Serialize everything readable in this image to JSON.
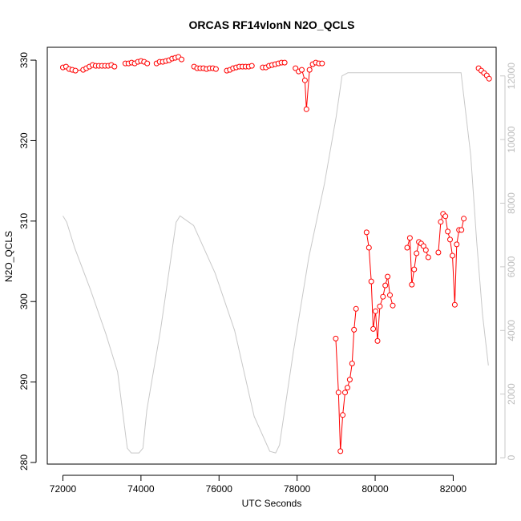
{
  "chart_data": {
    "type": "line",
    "title": "ORCAS RF14vlonN N2O_QCLS",
    "xlabel": "UTC Seconds",
    "ylabel": "N2O_QCLS",
    "xlim": [
      71600,
      83100
    ],
    "ylim": [
      279.8,
      331.6
    ],
    "y2lim": [
      -200,
      12900
    ],
    "x_ticks": [
      72000,
      74000,
      76000,
      78000,
      80000,
      82000
    ],
    "y_ticks": [
      280,
      290,
      300,
      310,
      320,
      330
    ],
    "y2_ticks": [
      0,
      2000,
      4000,
      6000,
      8000,
      10000,
      12000
    ],
    "colors": {
      "n2o": "#ff0000",
      "altitude": "#c8c8c8",
      "frame": "#000000"
    },
    "series": [
      {
        "values": [
          [
            72000,
            329.1
          ],
          [
            72080,
            329.2
          ],
          [
            72160,
            328.9
          ],
          [
            72240,
            328.8
          ],
          [
            72320,
            328.7
          ],
          [
            72520,
            328.8
          ],
          [
            72600,
            329.0
          ],
          [
            72680,
            329.2
          ],
          [
            72760,
            329.4
          ],
          [
            72840,
            329.3
          ],
          [
            72920,
            329.3
          ],
          [
            73000,
            329.3
          ],
          [
            73080,
            329.3
          ],
          [
            73160,
            329.3
          ],
          [
            73240,
            329.4
          ],
          [
            73320,
            329.2
          ],
          [
            73600,
            329.6
          ],
          [
            73680,
            329.6
          ],
          [
            73760,
            329.7
          ],
          [
            73840,
            329.6
          ],
          [
            73920,
            329.8
          ],
          [
            74000,
            329.9
          ],
          [
            74080,
            329.8
          ],
          [
            74160,
            329.6
          ],
          [
            74400,
            329.6
          ],
          [
            74480,
            329.8
          ],
          [
            74560,
            329.8
          ],
          [
            74640,
            329.9
          ],
          [
            74720,
            330.0
          ],
          [
            74800,
            330.2
          ],
          [
            74880,
            330.3
          ],
          [
            74960,
            330.4
          ],
          [
            75040,
            330.1
          ],
          [
            75360,
            329.2
          ],
          [
            75440,
            329.0
          ],
          [
            75520,
            329.0
          ],
          [
            75600,
            329.0
          ],
          [
            75680,
            328.9
          ],
          [
            75760,
            329.0
          ],
          [
            75840,
            329.0
          ],
          [
            75920,
            328.9
          ],
          [
            76200,
            328.7
          ],
          [
            76280,
            328.8
          ],
          [
            76360,
            329.0
          ],
          [
            76440,
            329.1
          ],
          [
            76520,
            329.2
          ],
          [
            76600,
            329.2
          ],
          [
            76680,
            329.2
          ],
          [
            76760,
            329.2
          ],
          [
            76840,
            329.3
          ],
          [
            77120,
            329.1
          ],
          [
            77200,
            329.1
          ],
          [
            77280,
            329.3
          ],
          [
            77360,
            329.4
          ],
          [
            77440,
            329.5
          ],
          [
            77520,
            329.6
          ],
          [
            77600,
            329.7
          ],
          [
            77680,
            329.7
          ],
          [
            77960,
            329.0
          ],
          [
            78040,
            328.6
          ],
          [
            78120,
            328.8
          ],
          [
            78200,
            327.5
          ],
          [
            78240,
            323.9
          ],
          [
            78320,
            328.8
          ],
          [
            78400,
            329.5
          ],
          [
            78480,
            329.7
          ],
          [
            78560,
            329.6
          ],
          [
            78640,
            329.6
          ],
          [
            78990,
            295.4
          ],
          [
            79060,
            288.7
          ],
          [
            79110,
            281.4
          ],
          [
            79170,
            285.9
          ],
          [
            79230,
            288.7
          ],
          [
            79290,
            289.3
          ],
          [
            79350,
            290.3
          ],
          [
            79410,
            292.3
          ],
          [
            79460,
            296.5
          ],
          [
            79510,
            299.1
          ],
          [
            79780,
            308.6
          ],
          [
            79840,
            306.7
          ],
          [
            79900,
            302.5
          ],
          [
            79950,
            296.6
          ],
          [
            80010,
            298.8
          ],
          [
            80060,
            295.1
          ],
          [
            80120,
            299.4
          ],
          [
            80200,
            300.6
          ],
          [
            80260,
            302.0
          ],
          [
            80320,
            303.1
          ],
          [
            80380,
            300.8
          ],
          [
            80450,
            299.5
          ],
          [
            80820,
            306.7
          ],
          [
            80890,
            307.9
          ],
          [
            80940,
            302.1
          ],
          [
            81000,
            304.0
          ],
          [
            81060,
            306.0
          ],
          [
            81120,
            307.4
          ],
          [
            81180,
            307.2
          ],
          [
            81240,
            306.9
          ],
          [
            81300,
            306.4
          ],
          [
            81360,
            305.5
          ],
          [
            81620,
            306.1
          ],
          [
            81680,
            309.9
          ],
          [
            81740,
            310.9
          ],
          [
            81800,
            310.6
          ],
          [
            81860,
            308.7
          ],
          [
            81920,
            307.7
          ],
          [
            81980,
            305.7
          ],
          [
            82040,
            299.6
          ],
          [
            82090,
            307.1
          ],
          [
            82150,
            308.9
          ],
          [
            82210,
            308.9
          ],
          [
            82270,
            310.3
          ],
          [
            82650,
            329.0
          ],
          [
            82720,
            328.7
          ],
          [
            82790,
            328.4
          ],
          [
            82860,
            328.1
          ],
          [
            82920,
            327.7
          ]
        ]
      },
      {
        "axis": "right",
        "values": [
          [
            72000,
            7600
          ],
          [
            72100,
            7400
          ],
          [
            72300,
            6600
          ],
          [
            72700,
            5300
          ],
          [
            73100,
            3900
          ],
          [
            73400,
            2700
          ],
          [
            73650,
            300
          ],
          [
            73750,
            150
          ],
          [
            73950,
            150
          ],
          [
            74050,
            300
          ],
          [
            74150,
            1500
          ],
          [
            74500,
            4000
          ],
          [
            74900,
            7400
          ],
          [
            75000,
            7600
          ],
          [
            75350,
            7300
          ],
          [
            75900,
            5800
          ],
          [
            76400,
            4000
          ],
          [
            76900,
            1300
          ],
          [
            77300,
            200
          ],
          [
            77450,
            150
          ],
          [
            77550,
            400
          ],
          [
            77900,
            3300
          ],
          [
            78300,
            6300
          ],
          [
            78700,
            8600
          ],
          [
            79000,
            10700
          ],
          [
            79150,
            12000
          ],
          [
            79300,
            12100
          ],
          [
            80000,
            12100
          ],
          [
            81000,
            12100
          ],
          [
            82200,
            12100
          ],
          [
            82450,
            9500
          ],
          [
            82600,
            6800
          ],
          [
            82750,
            4500
          ],
          [
            82900,
            2900
          ]
        ]
      }
    ]
  }
}
